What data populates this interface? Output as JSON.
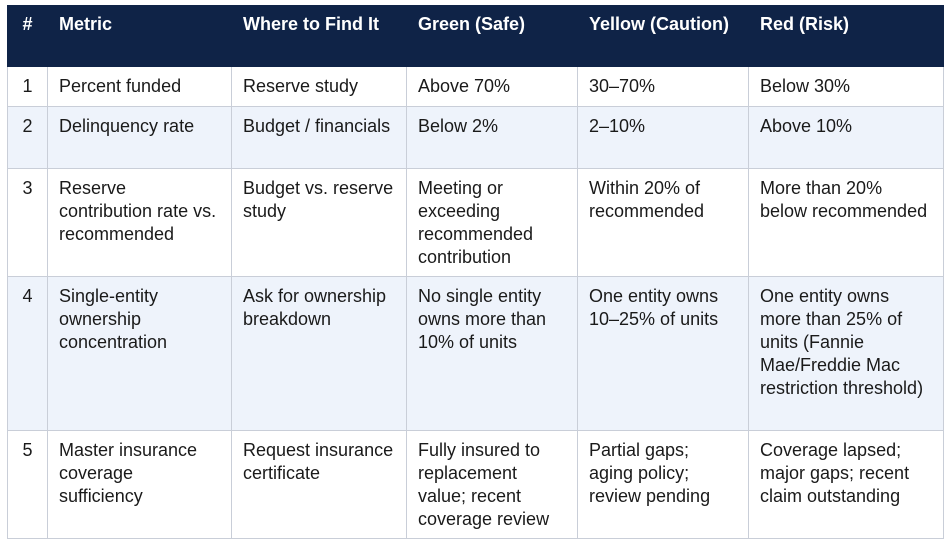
{
  "table": {
    "header": [
      "#",
      "Metric",
      "Where to Find It",
      "Green (Safe)",
      "Yellow (Caution)",
      "Red (Risk)"
    ],
    "rows": [
      [
        "1",
        "Percent funded",
        "Reserve study",
        "Above 70%",
        "30–70%",
        "Below 30%"
      ],
      [
        "2",
        "Delinquency rate",
        "Budget / financials",
        "Below 2%",
        "2–10%",
        "Above 10%"
      ],
      [
        "3",
        "Reserve contribution rate vs. recommended",
        "Budget vs. reserve study",
        "Meeting or exceeding recommended contribution",
        "Within 20% of recommended",
        "More than 20% below recommended"
      ],
      [
        "4",
        "Single-entity ownership concentration",
        "Ask for ownership breakdown",
        "No single entity owns more than 10% of units",
        "One entity owns 10–25% of units",
        "One entity owns more than 25% of units (Fannie Mae/Freddie Mac restriction threshold)"
      ],
      [
        "5",
        "Master insurance coverage sufficiency",
        "Request insurance certificate",
        "Fully insured to replacement value; recent coverage review",
        "Partial gaps; aging policy; review pending",
        "Coverage lapsed; major gaps; recent claim outstanding"
      ]
    ]
  }
}
